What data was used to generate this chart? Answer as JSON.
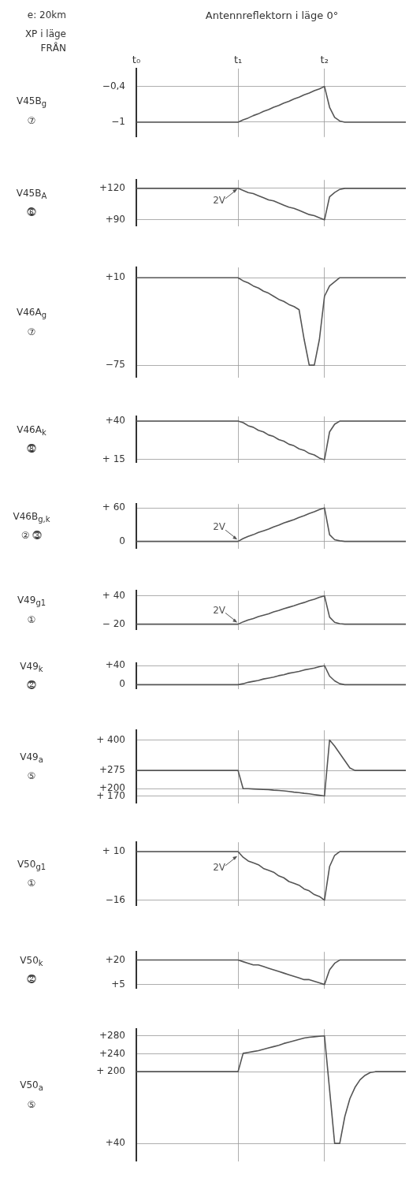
{
  "chart_data": [
    {
      "type": "line",
      "title": "Antennreflektorn i läge 0°",
      "annotations": [
        "e: 20km",
        "XP i läge\nFRÅN"
      ],
      "ylabel": "V45B$_{g}$\n⑦",
      "color": "#555555",
      "grid": true,
      "ylim": [
        -1.25,
        -0.1
      ],
      "yticks": [
        {
          "value": -0.4,
          "label": "−0,4"
        },
        {
          "value": -1,
          "label": "−1"
        }
      ],
      "categories": [
        "t₀",
        null,
        null,
        null,
        null,
        null,
        null,
        null,
        null,
        null,
        null,
        null,
        null,
        null,
        null,
        null,
        null,
        null,
        null,
        null,
        "t₁",
        null,
        null,
        null,
        null,
        null,
        null,
        null,
        null,
        null,
        null,
        null,
        null,
        null,
        null,
        null,
        null,
        "t₂",
        null,
        null,
        null,
        null,
        null,
        null,
        null,
        null,
        null,
        null,
        null,
        null,
        null,
        null,
        null,
        null
      ],
      "values": [
        -1,
        -1,
        -1,
        -1,
        -1,
        -1,
        -1,
        -1,
        -1,
        -1,
        -1,
        -1,
        -1,
        -1,
        -1,
        -1,
        -1,
        -1,
        -1,
        -1,
        -1,
        -0.96,
        -0.93,
        -0.89,
        -0.86,
        -0.82,
        -0.79,
        -0.75,
        -0.72,
        -0.68,
        -0.65,
        -0.61,
        -0.58,
        -0.54,
        -0.51,
        -0.47,
        -0.44,
        -0.4,
        -0.75,
        -0.92,
        -0.98,
        -1,
        -1,
        -1,
        -1,
        -1,
        -1,
        -1,
        -1,
        -1,
        -1,
        -1,
        -1,
        -1
      ]
    },
    {
      "type": "line",
      "annotations": [
        {
          "text": "2V",
          "x": "t₁",
          "y": 120
        }
      ],
      "ylabel": "V45B$_{A}$\n⓺",
      "color": "#555555",
      "grid": true,
      "tick_labels": "y",
      "ylim": [
        84,
        128
      ],
      "yticks": [
        {
          "value": 120,
          "label": "+120"
        },
        {
          "value": 90,
          "label": "+90"
        }
      ],
      "categories": [
        "t₀",
        null,
        null,
        null,
        null,
        null,
        null,
        null,
        null,
        null,
        null,
        null,
        null,
        null,
        null,
        null,
        null,
        null,
        null,
        null,
        "t₁",
        null,
        null,
        null,
        null,
        null,
        null,
        null,
        null,
        null,
        null,
        null,
        null,
        null,
        null,
        null,
        null,
        "t₂",
        null,
        null,
        null,
        null,
        null,
        null,
        null,
        null,
        null,
        null,
        null,
        null,
        null,
        null,
        null,
        null
      ],
      "values": [
        120,
        120,
        120,
        120,
        120,
        120,
        120,
        120,
        120,
        120,
        120,
        120,
        120,
        120,
        120,
        120,
        120,
        120,
        120,
        120,
        120,
        118,
        116,
        115,
        113,
        111,
        109,
        108,
        106,
        104,
        102,
        101,
        99,
        97,
        95,
        94,
        92,
        90,
        112,
        116,
        119,
        120,
        120,
        120,
        120,
        120,
        120,
        120,
        120,
        120,
        120,
        120,
        120,
        120
      ]
    },
    {
      "type": "line",
      "ylabel": "V46A$_{g}$\n⑦",
      "color": "#555555",
      "grid": true,
      "tick_labels": "y",
      "ylim": [
        -87,
        20
      ],
      "yticks": [
        {
          "value": 10,
          "label": "+10"
        },
        {
          "value": -75,
          "label": "−75"
        }
      ],
      "categories": [
        "t₀",
        null,
        null,
        null,
        null,
        null,
        null,
        null,
        null,
        null,
        null,
        null,
        null,
        null,
        null,
        null,
        null,
        null,
        null,
        null,
        "t₁",
        null,
        null,
        null,
        null,
        null,
        null,
        null,
        null,
        null,
        null,
        null,
        null,
        null,
        null,
        null,
        null,
        "t₂",
        null,
        null,
        null,
        null,
        null,
        null,
        null,
        null,
        null,
        null,
        null,
        null,
        null,
        null,
        null,
        null
      ],
      "values": [
        10,
        10,
        10,
        10,
        10,
        10,
        10,
        10,
        10,
        10,
        10,
        10,
        10,
        10,
        10,
        10,
        10,
        10,
        10,
        10,
        10,
        7,
        5,
        2,
        0,
        -3,
        -5,
        -8,
        -11,
        -13,
        -16,
        -18,
        -21,
        -50,
        -75,
        -75,
        -50,
        -8,
        2,
        6,
        10,
        10,
        10,
        10,
        10,
        10,
        10,
        10,
        10,
        10,
        10,
        10,
        10,
        10
      ]
    },
    {
      "type": "line",
      "ylabel": "V46A$_{k}$\n⓼",
      "color": "#555555",
      "grid": true,
      "tick_labels": "y",
      "ylim": [
        13,
        43
      ],
      "yticks": [
        {
          "value": 40,
          "label": "+40"
        },
        {
          "value": 15,
          "label": "+ 15"
        }
      ],
      "categories": [
        "t₀",
        null,
        null,
        null,
        null,
        null,
        null,
        null,
        null,
        null,
        null,
        null,
        null,
        null,
        null,
        null,
        null,
        null,
        null,
        null,
        "t₁",
        null,
        null,
        null,
        null,
        null,
        null,
        null,
        null,
        null,
        null,
        null,
        null,
        null,
        null,
        null,
        null,
        "t₂",
        null,
        null,
        null,
        null,
        null,
        null,
        null,
        null,
        null,
        null,
        null,
        null,
        null,
        null,
        null,
        null
      ],
      "values": [
        40,
        40,
        40,
        40,
        40,
        40,
        40,
        40,
        40,
        40,
        40,
        40,
        40,
        40,
        40,
        40,
        40,
        40,
        40,
        40,
        40,
        39,
        37,
        36,
        34,
        33,
        31,
        30,
        28,
        27,
        25,
        24,
        22,
        21,
        19,
        18,
        16,
        15,
        33,
        38,
        40,
        40,
        40,
        40,
        40,
        40,
        40,
        40,
        40,
        40,
        40,
        40,
        40,
        40
      ]
    },
    {
      "type": "line",
      "annotations": [
        {
          "text": "2V",
          "x": "t₁",
          "y": 2
        }
      ],
      "ylabel": "V46B$_{g,k}$\n② ⓷",
      "color": "#555555",
      "grid": true,
      "tick_labels": "y",
      "ylim": [
        -13,
        67
      ],
      "yticks": [
        {
          "value": 60,
          "label": "+ 60"
        },
        {
          "value": 0,
          "label": "0"
        }
      ],
      "categories": [
        "t₀",
        null,
        null,
        null,
        null,
        null,
        null,
        null,
        null,
        null,
        null,
        null,
        null,
        null,
        null,
        null,
        null,
        null,
        null,
        null,
        "t₁",
        null,
        null,
        null,
        null,
        null,
        null,
        null,
        null,
        null,
        null,
        null,
        null,
        null,
        null,
        null,
        null,
        "t₂",
        null,
        null,
        null,
        null,
        null,
        null,
        null,
        null,
        null,
        null,
        null,
        null,
        null,
        null,
        null,
        null
      ],
      "values": [
        0,
        0,
        0,
        0,
        0,
        0,
        0,
        0,
        0,
        0,
        0,
        0,
        0,
        0,
        0,
        0,
        0,
        0,
        0,
        0,
        0,
        5,
        9,
        12,
        16,
        19,
        22,
        26,
        29,
        33,
        36,
        39,
        43,
        46,
        50,
        53,
        57,
        60,
        12,
        3,
        1,
        0,
        0,
        0,
        0,
        0,
        0,
        0,
        0,
        0,
        0,
        0,
        0,
        0
      ]
    },
    {
      "type": "line",
      "annotations": [
        {
          "text": "2V",
          "x": "t₁",
          "y": -18
        }
      ],
      "ylabel": "V49$_{g1}$\n①",
      "color": "#555555",
      "grid": true,
      "tick_labels": "y",
      "ylim": [
        -32,
        51
      ],
      "yticks": [
        {
          "value": 40,
          "label": "+ 40"
        },
        {
          "value": -20,
          "label": "− 20"
        }
      ],
      "categories": [
        "t₀",
        null,
        null,
        null,
        null,
        null,
        null,
        null,
        null,
        null,
        null,
        null,
        null,
        null,
        null,
        null,
        null,
        null,
        null,
        null,
        "t₁",
        null,
        null,
        null,
        null,
        null,
        null,
        null,
        null,
        null,
        null,
        null,
        null,
        null,
        null,
        null,
        null,
        "t₂",
        null,
        null,
        null,
        null,
        null,
        null,
        null,
        null,
        null,
        null,
        null,
        null,
        null,
        null,
        null,
        null
      ],
      "values": [
        -20,
        -20,
        -20,
        -20,
        -20,
        -20,
        -20,
        -20,
        -20,
        -20,
        -20,
        -20,
        -20,
        -20,
        -20,
        -20,
        -20,
        -20,
        -20,
        -20,
        -20,
        -15,
        -11,
        -8,
        -4,
        -1,
        2,
        6,
        9,
        13,
        16,
        19,
        23,
        26,
        30,
        33,
        37,
        40,
        -5,
        -16,
        -19,
        -20,
        -20,
        -20,
        -20,
        -20,
        -20,
        -20,
        -20,
        -20,
        -20,
        -20,
        -20,
        -20
      ]
    },
    {
      "type": "line",
      "ylabel": "V49$_{k}$\n⓶",
      "color": "#555555",
      "grid": true,
      "tick_labels": "y",
      "ylim": [
        -9,
        45
      ],
      "yticks": [
        {
          "value": 40,
          "label": "+40"
        },
        {
          "value": 0,
          "label": "0"
        }
      ],
      "categories": [
        "t₀",
        null,
        null,
        null,
        null,
        null,
        null,
        null,
        null,
        null,
        null,
        null,
        null,
        null,
        null,
        null,
        null,
        null,
        null,
        null,
        "t₁",
        null,
        null,
        null,
        null,
        null,
        null,
        null,
        null,
        null,
        null,
        null,
        null,
        null,
        null,
        null,
        null,
        "t₂",
        null,
        null,
        null,
        null,
        null,
        null,
        null,
        null,
        null,
        null,
        null,
        null,
        null,
        null,
        null,
        null
      ],
      "values": [
        0,
        0,
        0,
        0,
        0,
        0,
        0,
        0,
        0,
        0,
        0,
        0,
        0,
        0,
        0,
        0,
        0,
        0,
        0,
        0,
        0,
        2,
        5,
        7,
        9,
        12,
        14,
        16,
        19,
        21,
        24,
        26,
        28,
        31,
        33,
        35,
        38,
        40,
        18,
        8,
        2,
        0,
        0,
        0,
        0,
        0,
        0,
        0,
        0,
        0,
        0,
        0,
        0,
        0
      ]
    },
    {
      "type": "line",
      "ylabel": "V49$_{a}$\n⑤",
      "color": "#555555",
      "grid": true,
      "tick_labels": "y",
      "ylim": [
        140,
        440
      ],
      "yticks": [
        {
          "value": 400,
          "label": "+ 400"
        },
        {
          "value": 275,
          "label": "+275"
        },
        {
          "value": 200,
          "label": "+200"
        },
        {
          "value": 170,
          "label": "+ 170"
        }
      ],
      "categories": [
        "t₀",
        null,
        null,
        null,
        null,
        null,
        null,
        null,
        null,
        null,
        null,
        null,
        null,
        null,
        null,
        null,
        null,
        null,
        null,
        null,
        "t₁",
        null,
        null,
        null,
        null,
        null,
        null,
        null,
        null,
        null,
        null,
        null,
        null,
        null,
        null,
        null,
        null,
        "t₂",
        null,
        null,
        null,
        null,
        null,
        null,
        null,
        null,
        null,
        null,
        null,
        null,
        null,
        null,
        null,
        null
      ],
      "values": [
        275,
        275,
        275,
        275,
        275,
        275,
        275,
        275,
        275,
        275,
        275,
        275,
        275,
        275,
        275,
        275,
        275,
        275,
        275,
        275,
        275,
        200,
        200,
        199,
        198,
        197,
        196,
        194,
        193,
        191,
        189,
        186,
        184,
        181,
        179,
        176,
        173,
        170,
        400,
        375,
        345,
        315,
        285,
        275,
        275,
        275,
        275,
        275,
        275,
        275,
        275,
        275,
        275,
        275
      ]
    },
    {
      "type": "line",
      "annotations": [
        {
          "text": "2V",
          "x": "t₁",
          "y": 8
        }
      ],
      "ylabel": "V50$_{g1}$\n①",
      "color": "#555555",
      "grid": true,
      "tick_labels": "y",
      "ylim": [
        -19,
        15
      ],
      "yticks": [
        {
          "value": 10,
          "label": "+ 10"
        },
        {
          "value": -16,
          "label": "−16"
        }
      ],
      "categories": [
        "t₀",
        null,
        null,
        null,
        null,
        null,
        null,
        null,
        null,
        null,
        null,
        null,
        null,
        null,
        null,
        null,
        null,
        null,
        null,
        null,
        "t₁",
        null,
        null,
        null,
        null,
        null,
        null,
        null,
        null,
        null,
        null,
        null,
        null,
        null,
        null,
        null,
        null,
        "t₂",
        null,
        null,
        null,
        null,
        null,
        null,
        null,
        null,
        null,
        null,
        null,
        null,
        null,
        null,
        null,
        null
      ],
      "values": [
        10,
        10,
        10,
        10,
        10,
        10,
        10,
        10,
        10,
        10,
        10,
        10,
        10,
        10,
        10,
        10,
        10,
        10,
        10,
        10,
        10,
        7,
        5,
        4,
        3,
        1,
        0,
        -1,
        -3,
        -4,
        -6,
        -7,
        -8,
        -10,
        -11,
        -13,
        -14,
        -16,
        2,
        8,
        10,
        10,
        10,
        10,
        10,
        10,
        10,
        10,
        10,
        10,
        10,
        10,
        10,
        10
      ]
    },
    {
      "type": "line",
      "ylabel": "V50$_{k}$\n⓶",
      "color": "#555555",
      "grid": true,
      "tick_labels": "y",
      "ylim": [
        2.5,
        25
      ],
      "yticks": [
        {
          "value": 20,
          "label": "+20"
        },
        {
          "value": 5,
          "label": "+5"
        }
      ],
      "categories": [
        "t₀",
        null,
        null,
        null,
        null,
        null,
        null,
        null,
        null,
        null,
        null,
        null,
        null,
        null,
        null,
        null,
        null,
        null,
        null,
        null,
        "t₁",
        null,
        null,
        null,
        null,
        null,
        null,
        null,
        null,
        null,
        null,
        null,
        null,
        null,
        null,
        null,
        null,
        "t₂",
        null,
        null,
        null,
        null,
        null,
        null,
        null,
        null,
        null,
        null,
        null,
        null,
        null,
        null,
        null,
        null
      ],
      "values": [
        20,
        20,
        20,
        20,
        20,
        20,
        20,
        20,
        20,
        20,
        20,
        20,
        20,
        20,
        20,
        20,
        20,
        20,
        20,
        20,
        20,
        19,
        18,
        17,
        17,
        16,
        15,
        14,
        13,
        12,
        11,
        10,
        9,
        8,
        8,
        7,
        6,
        5,
        14,
        18,
        20,
        20,
        20,
        20,
        20,
        20,
        20,
        20,
        20,
        20,
        20,
        20,
        20,
        20
      ]
    },
    {
      "type": "line",
      "ylabel": "V50$_{a}$\n⑤",
      "color": "#555555",
      "grid": true,
      "tick_labels": "y",
      "ylim": [
        0,
        295
      ],
      "yticks": [
        {
          "value": 280,
          "label": "+280"
        },
        {
          "value": 240,
          "label": "+240"
        },
        {
          "value": 200,
          "label": "+ 200"
        },
        {
          "value": 40,
          "label": "+40"
        }
      ],
      "categories": [
        "t₀",
        null,
        null,
        null,
        null,
        null,
        null,
        null,
        null,
        null,
        null,
        null,
        null,
        null,
        null,
        null,
        null,
        null,
        null,
        null,
        "t₁",
        null,
        null,
        null,
        null,
        null,
        null,
        null,
        null,
        null,
        null,
        null,
        null,
        null,
        null,
        null,
        null,
        "t₂",
        null,
        null,
        null,
        null,
        null,
        null,
        null,
        null,
        null,
        null,
        null,
        null,
        null,
        null,
        null,
        null
      ],
      "values": [
        200,
        200,
        200,
        200,
        200,
        200,
        200,
        200,
        200,
        200,
        200,
        200,
        200,
        200,
        200,
        200,
        200,
        200,
        200,
        200,
        200,
        241,
        243,
        245,
        247,
        250,
        253,
        256,
        259,
        263,
        266,
        269,
        272,
        275,
        277,
        278,
        279,
        280,
        160,
        40,
        40,
        100,
        140,
        165,
        182,
        192,
        198,
        200,
        200,
        200,
        200,
        200,
        200,
        200
      ]
    }
  ]
}
